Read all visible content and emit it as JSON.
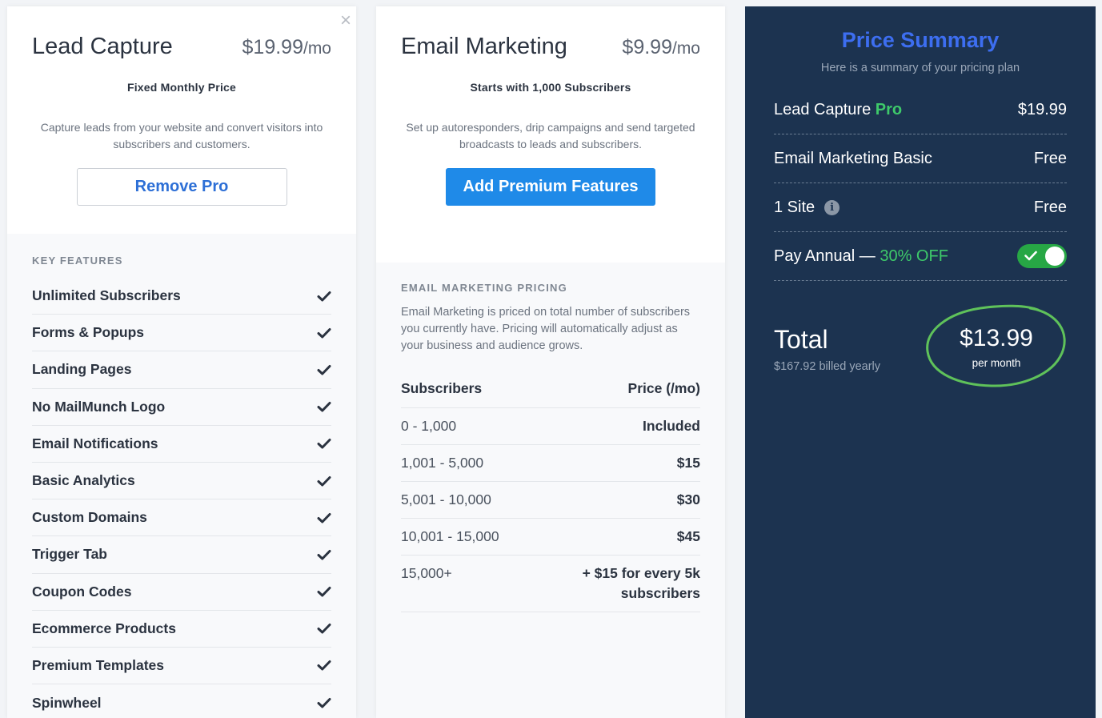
{
  "lead_card": {
    "title": "Lead Capture",
    "price": "$19.99",
    "price_unit": "/mo",
    "subtitle": "Fixed Monthly Price",
    "description": "Capture leads from your website and convert visitors into subscribers and customers.",
    "button_label": "Remove Pro",
    "close_glyph": "×",
    "features_heading": "KEY FEATURES",
    "features": [
      "Unlimited Subscribers",
      "Forms & Popups",
      "Landing Pages",
      "No MailMunch Logo",
      "Email Notifications",
      "Basic Analytics",
      "Custom Domains",
      "Trigger Tab",
      "Coupon Codes",
      "Ecommerce Products",
      "Premium Templates",
      "Spinwheel"
    ]
  },
  "email_card": {
    "title": "Email Marketing",
    "price": "$9.99",
    "price_unit": "/mo",
    "subtitle": "Starts with 1,000 Subscribers",
    "description": "Set up autoresponders, drip campaigns and send targeted broadcasts to leads and subscribers.",
    "button_label": "Add Premium Features",
    "pricing_heading": "EMAIL MARKETING PRICING",
    "pricing_description": "Email Marketing is priced on total number of subscribers you currently have. Pricing will automatically adjust as your business and audience grows.",
    "table_headers": [
      "Subscribers",
      "Price (/mo)"
    ],
    "table_rows": [
      [
        "0 - 1,000",
        "Included"
      ],
      [
        "1,001 - 5,000",
        "$15"
      ],
      [
        "5,001 - 10,000",
        "$30"
      ],
      [
        "10,001 - 15,000",
        "$45"
      ],
      [
        "15,000+",
        "+ $15 for every 5k subscribers"
      ]
    ]
  },
  "summary": {
    "title": "Price Summary",
    "subtitle": "Here is a summary of your pricing plan",
    "rows": [
      {
        "label": "Lead Capture",
        "tag": "Pro",
        "value": "$19.99"
      },
      {
        "label": "Email Marketing Basic",
        "value": "Free"
      },
      {
        "label": "1 Site",
        "info_glyph": "i",
        "value": "Free"
      }
    ],
    "annual": {
      "label": "Pay Annual",
      "dash": " — ",
      "discount": "30% OFF",
      "enabled": true
    },
    "total_label": "Total",
    "billed": "$167.92 billed yearly",
    "total_price": "$13.99",
    "per": "per month"
  },
  "colors": {
    "summary_bg": "#1c3350",
    "accent_blue": "#1f8ae8",
    "title_blue": "#3d6ef0",
    "green": "#3ec96a",
    "toggle_green": "#27a745"
  }
}
